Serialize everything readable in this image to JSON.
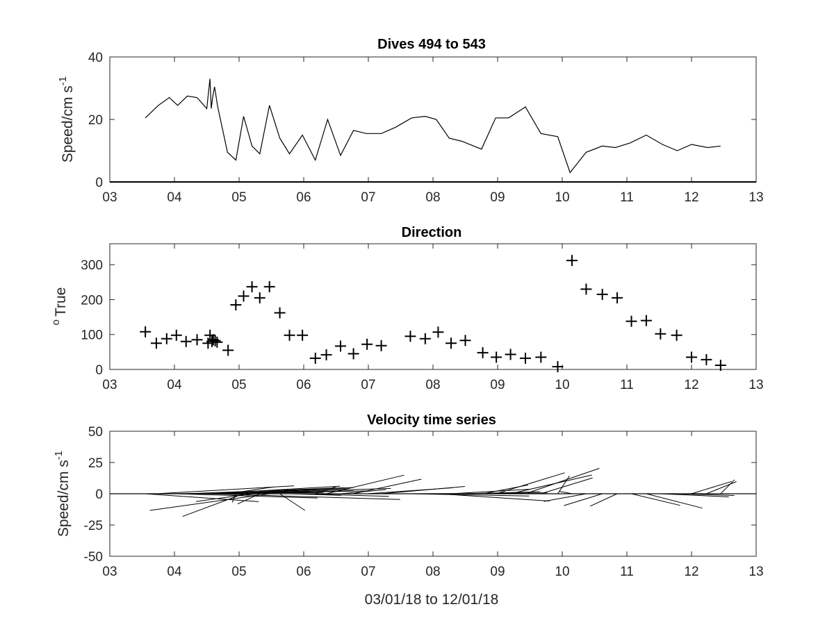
{
  "chart_data": [
    {
      "type": "line",
      "title": "Dives 494 to 543",
      "ylabel": "Speed/cm s",
      "ylabel_sup": "-1",
      "xlim": [
        3,
        13
      ],
      "ylim": [
        0,
        40
      ],
      "xticks": [
        "03",
        "04",
        "05",
        "06",
        "07",
        "08",
        "09",
        "10",
        "11",
        "12",
        "13"
      ],
      "yticks": [
        "0",
        "20",
        "40"
      ],
      "series": [
        {
          "x": [
            3.55,
            3.75,
            3.92,
            4.05,
            4.2,
            4.35,
            4.5,
            4.55,
            4.57,
            4.59,
            4.62,
            4.67,
            4.82,
            4.95,
            5.07,
            5.2,
            5.32,
            5.47,
            5.63,
            5.78,
            5.98,
            6.18,
            6.37,
            6.57,
            6.77,
            6.97,
            7.2,
            7.42,
            7.67,
            7.88,
            8.05,
            8.25,
            8.45,
            8.75,
            8.97,
            9.17,
            9.43,
            9.67,
            9.93,
            10.12,
            10.37,
            10.62,
            10.82,
            11.05,
            11.3,
            11.55,
            11.78,
            12.0,
            12.25,
            12.45
          ],
          "values": [
            20.5,
            24.5,
            27,
            24.5,
            27.5,
            27,
            23.5,
            33,
            23.5,
            27,
            30.5,
            24,
            9.5,
            7,
            21,
            11.5,
            9,
            24.5,
            14,
            9,
            15,
            7,
            20,
            8.5,
            16.5,
            15.5,
            15.5,
            17.5,
            20.5,
            21,
            20,
            14,
            13,
            10.5,
            20.5,
            20.5,
            24,
            15.5,
            14.5,
            3,
            9.5,
            11.5,
            11,
            12.5,
            15,
            12,
            10,
            12,
            11,
            11.5
          ]
        }
      ]
    },
    {
      "type": "scatter",
      "title": "Direction",
      "ylabel": "True",
      "ylabel_sup": "o",
      "xlim": [
        3,
        13
      ],
      "ylim": [
        0,
        360
      ],
      "xticks": [
        "03",
        "04",
        "05",
        "06",
        "07",
        "08",
        "09",
        "10",
        "11",
        "12",
        "13"
      ],
      "yticks": [
        "0",
        "100",
        "200",
        "300"
      ],
      "series": [
        {
          "x": [
            3.55,
            3.72,
            3.88,
            4.03,
            4.18,
            4.35,
            4.52,
            4.55,
            4.58,
            4.6,
            4.63,
            4.66,
            4.83,
            4.95,
            5.07,
            5.2,
            5.32,
            5.47,
            5.63,
            5.78,
            5.98,
            6.18,
            6.35,
            6.57,
            6.77,
            6.98,
            7.2,
            7.65,
            7.88,
            8.08,
            8.28,
            8.5,
            8.77,
            8.98,
            9.2,
            9.43,
            9.67,
            9.93,
            10.15,
            10.37,
            10.62,
            10.85,
            11.07,
            11.3,
            11.52,
            11.77,
            12.0,
            12.23,
            12.45
          ],
          "values": [
            108,
            75,
            88,
            98,
            80,
            85,
            75,
            98,
            80,
            85,
            82,
            78,
            55,
            185,
            210,
            237,
            205,
            237,
            162,
            98,
            98,
            32,
            42,
            67,
            45,
            72,
            68,
            95,
            88,
            107,
            75,
            83,
            48,
            35,
            43,
            32,
            35,
            8,
            312,
            230,
            215,
            205,
            138,
            140,
            102,
            98,
            35,
            28,
            12
          ]
        }
      ]
    },
    {
      "type": "quiver",
      "title": "Velocity time series",
      "xlabel": "03/01/18 to 12/01/18",
      "ylabel": "Speed/cm s",
      "ylabel_sup": "-1",
      "xlim": [
        3,
        13
      ],
      "ylim": [
        -50,
        50
      ],
      "xticks": [
        "03",
        "04",
        "05",
        "06",
        "07",
        "08",
        "09",
        "10",
        "11",
        "12",
        "13"
      ],
      "yticks": [
        "50",
        "25",
        "0",
        "-25",
        "-50"
      ],
      "zero_line": true,
      "series": [
        {
          "x": [
            3.55,
            3.72,
            3.88,
            4.03,
            4.18,
            4.35,
            4.52,
            4.55,
            4.58,
            4.6,
            4.63,
            4.66,
            4.83,
            4.95,
            5.07,
            5.2,
            5.32,
            5.47,
            5.63,
            5.78,
            5.98,
            6.18,
            6.35,
            6.57,
            6.77,
            6.98,
            7.2,
            7.65,
            7.88,
            8.08,
            8.28,
            8.5,
            8.77,
            8.98,
            9.2,
            9.43,
            9.67,
            9.93,
            10.15,
            10.37,
            10.62,
            10.85,
            11.07,
            11.3,
            11.52,
            11.77,
            12.0,
            12.23,
            12.45
          ],
          "speed": [
            20.5,
            24.5,
            27,
            24.5,
            27.5,
            27,
            23.5,
            33,
            23.5,
            27,
            30.5,
            24,
            9.5,
            7,
            21,
            11.5,
            9,
            24.5,
            14,
            9,
            15,
            7,
            20,
            8.5,
            16.5,
            15.5,
            15.5,
            20.5,
            21,
            20,
            14,
            13,
            10.5,
            20.5,
            20.5,
            24,
            15.5,
            14.5,
            3,
            9.5,
            11.5,
            11,
            12.5,
            15,
            12,
            10,
            12,
            11,
            11.5
          ],
          "direction": [
            108,
            75,
            88,
            98,
            80,
            85,
            75,
            98,
            80,
            85,
            82,
            78,
            55,
            185,
            210,
            237,
            205,
            237,
            162,
            98,
            98,
            32,
            42,
            67,
            45,
            72,
            68,
            95,
            88,
            107,
            75,
            83,
            48,
            35,
            43,
            32,
            35,
            8,
            312,
            230,
            215,
            205,
            138,
            140,
            102,
            98,
            35,
            28,
            12
          ]
        }
      ]
    }
  ]
}
